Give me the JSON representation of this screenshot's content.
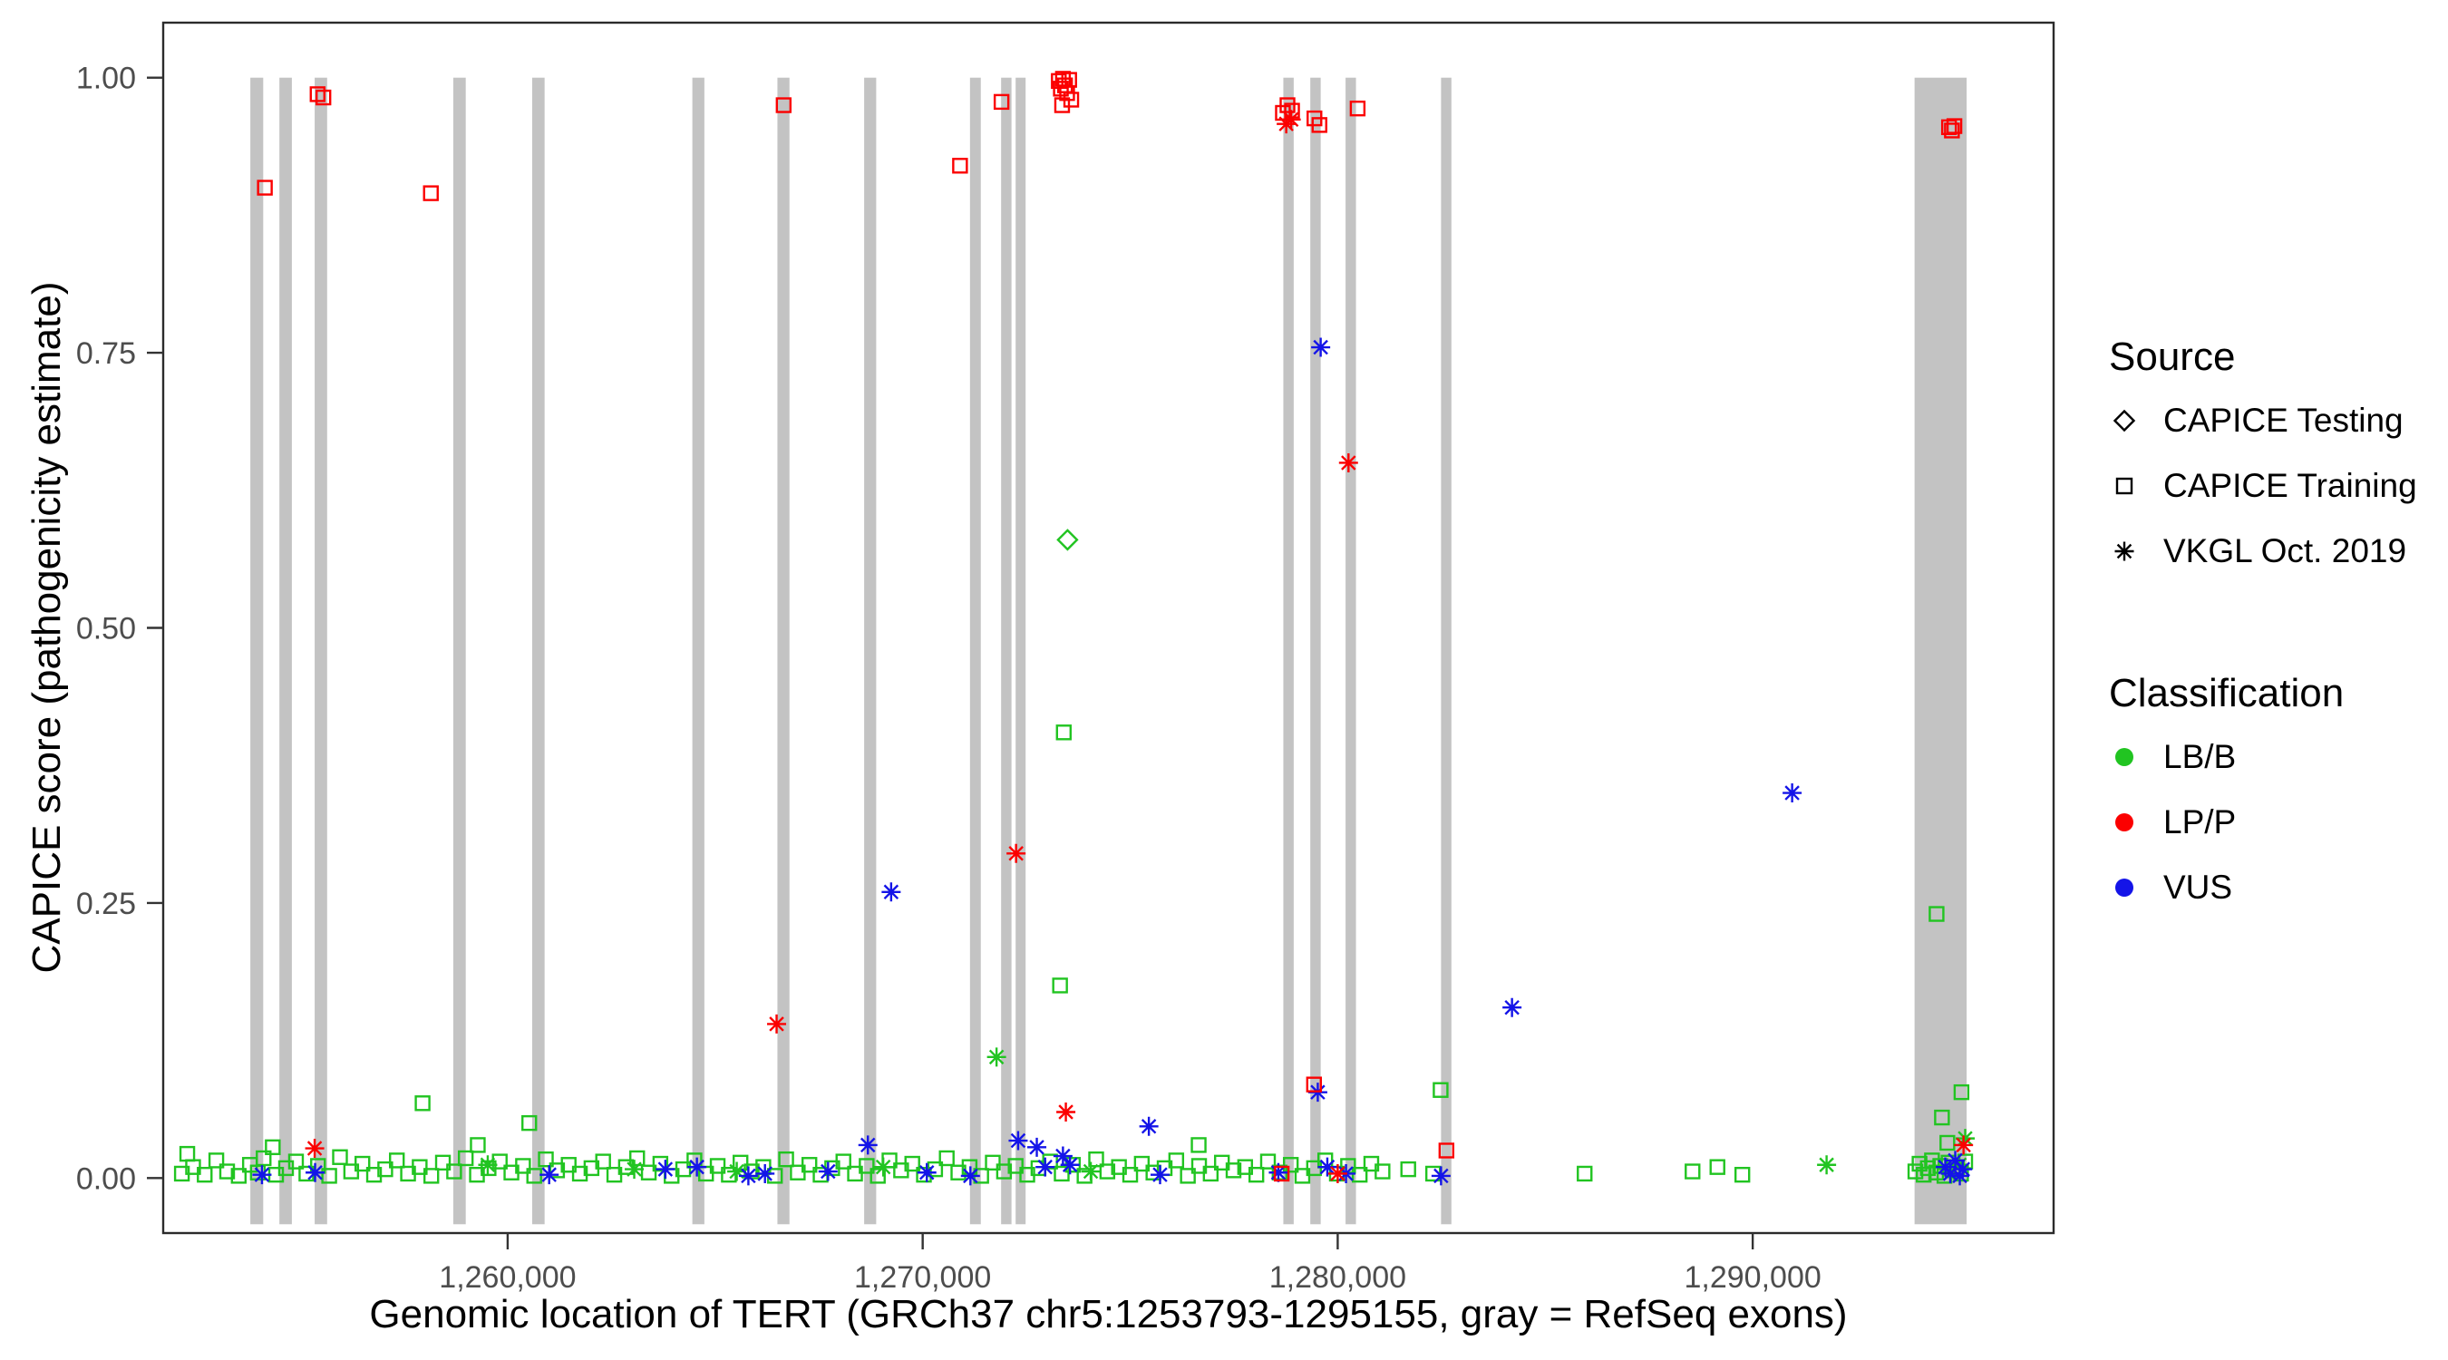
{
  "axes": {
    "x": {
      "title": "Genomic location of TERT (GRCh37 chr5:1253793-1295155, gray = RefSeq exons)",
      "ticks": [
        {
          "value": 1260000,
          "label": "1,260,000"
        },
        {
          "value": 1270000,
          "label": "1,270,000"
        },
        {
          "value": 1280000,
          "label": "1,280,000"
        },
        {
          "value": 1290000,
          "label": "1,290,000"
        }
      ]
    },
    "y": {
      "title": "CAPICE score (pathogenicity estimate)",
      "ticks": [
        {
          "value": 0.0,
          "label": "0.00"
        },
        {
          "value": 0.25,
          "label": "0.25"
        },
        {
          "value": 0.5,
          "label": "0.50"
        },
        {
          "value": 0.75,
          "label": "0.75"
        },
        {
          "value": 1.0,
          "label": "1.00"
        }
      ]
    }
  },
  "legend": {
    "source": {
      "title": "Source",
      "items": [
        {
          "label": "CAPICE Testing",
          "shape": "diamond"
        },
        {
          "label": "CAPICE Training",
          "shape": "square"
        },
        {
          "label": "VKGL Oct. 2019",
          "shape": "asterisk"
        }
      ]
    },
    "classification": {
      "title": "Classification",
      "items": [
        {
          "label": "LB/B",
          "color": "#21c421"
        },
        {
          "label": "LP/P",
          "color": "#fb0000"
        },
        {
          "label": "VUS",
          "color": "#1414e8"
        }
      ]
    }
  },
  "chart_data": {
    "type": "scatter",
    "title": "",
    "xlabel": "Genomic location of TERT (GRCh37 chr5:1253793-1295155, gray = RefSeq exons)",
    "ylabel": "CAPICE score (pathogenicity estimate)",
    "xlim": [
      1251700,
      1297250
    ],
    "ylim": [
      -0.05,
      1.05
    ],
    "grid": false,
    "legend_position": "right",
    "exon_color": "#c3c3c3",
    "exons": [
      [
        1253800,
        1254110
      ],
      [
        1254500,
        1254800
      ],
      [
        1255350,
        1255650
      ],
      [
        1258690,
        1258990
      ],
      [
        1260590,
        1260890
      ],
      [
        1264450,
        1264740
      ],
      [
        1266500,
        1266790
      ],
      [
        1268590,
        1268880
      ],
      [
        1271140,
        1271400
      ],
      [
        1271890,
        1272140
      ],
      [
        1272240,
        1272480
      ],
      [
        1278690,
        1278940
      ],
      [
        1279340,
        1279590
      ],
      [
        1280190,
        1280440
      ],
      [
        1282490,
        1282740
      ],
      [
        1293900,
        1295155
      ]
    ],
    "colors": {
      "B": "#21c421",
      "P": "#fb0000",
      "V": "#1414e8"
    },
    "classification_codes": {
      "B": "LB/B",
      "P": "LP/P",
      "V": "VUS"
    },
    "shape_codes": {
      "d": "CAPICE Testing",
      "s": "CAPICE Training",
      "a": "VKGL Oct. 2019"
    },
    "point_format": [
      "x_genomic_position",
      "capice_score",
      "classification_code",
      "shape_code"
    ],
    "points": [
      [
        1252150,
        0.004,
        "B",
        "s"
      ],
      [
        1252420,
        0.01,
        "B",
        "s"
      ],
      [
        1252700,
        0.003,
        "B",
        "s"
      ],
      [
        1252980,
        0.016,
        "B",
        "s"
      ],
      [
        1253240,
        0.006,
        "B",
        "s"
      ],
      [
        1253520,
        0.002,
        "B",
        "s"
      ],
      [
        1253790,
        0.012,
        "B",
        "s"
      ],
      [
        1253980,
        0.005,
        "B",
        "s"
      ],
      [
        1254120,
        0.018,
        "B",
        "s"
      ],
      [
        1254420,
        0.003,
        "B",
        "s"
      ],
      [
        1254660,
        0.009,
        "B",
        "s"
      ],
      [
        1254900,
        0.015,
        "B",
        "s"
      ],
      [
        1255150,
        0.004,
        "B",
        "s"
      ],
      [
        1255430,
        0.011,
        "B",
        "s"
      ],
      [
        1255700,
        0.002,
        "B",
        "s"
      ],
      [
        1255960,
        0.019,
        "B",
        "s"
      ],
      [
        1256230,
        0.006,
        "B",
        "s"
      ],
      [
        1256500,
        0.013,
        "B",
        "s"
      ],
      [
        1256780,
        0.003,
        "B",
        "s"
      ],
      [
        1257050,
        0.008,
        "B",
        "s"
      ],
      [
        1257330,
        0.016,
        "B",
        "s"
      ],
      [
        1257600,
        0.004,
        "B",
        "s"
      ],
      [
        1257880,
        0.01,
        "B",
        "s"
      ],
      [
        1258160,
        0.002,
        "B",
        "s"
      ],
      [
        1258440,
        0.014,
        "B",
        "s"
      ],
      [
        1258710,
        0.006,
        "B",
        "s"
      ],
      [
        1258990,
        0.018,
        "B",
        "s"
      ],
      [
        1259260,
        0.003,
        "B",
        "s"
      ],
      [
        1259540,
        0.009,
        "B",
        "s"
      ],
      [
        1259810,
        0.015,
        "B",
        "s"
      ],
      [
        1260090,
        0.005,
        "B",
        "s"
      ],
      [
        1260370,
        0.011,
        "B",
        "s"
      ],
      [
        1260640,
        0.002,
        "B",
        "s"
      ],
      [
        1260920,
        0.017,
        "B",
        "s"
      ],
      [
        1261190,
        0.007,
        "B",
        "s"
      ],
      [
        1261470,
        0.012,
        "B",
        "s"
      ],
      [
        1261740,
        0.004,
        "B",
        "s"
      ],
      [
        1262020,
        0.009,
        "B",
        "s"
      ],
      [
        1262300,
        0.015,
        "B",
        "s"
      ],
      [
        1262570,
        0.003,
        "B",
        "s"
      ],
      [
        1262850,
        0.01,
        "B",
        "s"
      ],
      [
        1263120,
        0.018,
        "B",
        "s"
      ],
      [
        1263400,
        0.005,
        "B",
        "s"
      ],
      [
        1263680,
        0.013,
        "B",
        "s"
      ],
      [
        1263950,
        0.002,
        "B",
        "s"
      ],
      [
        1264230,
        0.008,
        "B",
        "s"
      ],
      [
        1264500,
        0.016,
        "B",
        "s"
      ],
      [
        1264780,
        0.004,
        "B",
        "s"
      ],
      [
        1265060,
        0.011,
        "B",
        "s"
      ],
      [
        1265330,
        0.003,
        "B",
        "s"
      ],
      [
        1265610,
        0.014,
        "B",
        "s"
      ],
      [
        1265880,
        0.006,
        "B",
        "s"
      ],
      [
        1266160,
        0.01,
        "B",
        "s"
      ],
      [
        1266440,
        0.002,
        "B",
        "s"
      ],
      [
        1266710,
        0.017,
        "B",
        "s"
      ],
      [
        1266990,
        0.005,
        "B",
        "s"
      ],
      [
        1267270,
        0.012,
        "B",
        "s"
      ],
      [
        1267540,
        0.003,
        "B",
        "s"
      ],
      [
        1267820,
        0.009,
        "B",
        "s"
      ],
      [
        1268090,
        0.015,
        "B",
        "s"
      ],
      [
        1268370,
        0.004,
        "B",
        "s"
      ],
      [
        1268650,
        0.011,
        "B",
        "s"
      ],
      [
        1268920,
        0.002,
        "B",
        "s"
      ],
      [
        1269200,
        0.016,
        "B",
        "s"
      ],
      [
        1269480,
        0.007,
        "B",
        "s"
      ],
      [
        1269750,
        0.013,
        "B",
        "s"
      ],
      [
        1270030,
        0.003,
        "B",
        "s"
      ],
      [
        1270300,
        0.008,
        "B",
        "s"
      ],
      [
        1270580,
        0.018,
        "B",
        "s"
      ],
      [
        1270860,
        0.005,
        "B",
        "s"
      ],
      [
        1271130,
        0.01,
        "B",
        "s"
      ],
      [
        1271410,
        0.002,
        "B",
        "s"
      ],
      [
        1271690,
        0.014,
        "B",
        "s"
      ],
      [
        1271960,
        0.006,
        "B",
        "s"
      ],
      [
        1272240,
        0.011,
        "B",
        "s"
      ],
      [
        1272520,
        0.003,
        "B",
        "s"
      ],
      [
        1272790,
        0.009,
        "B",
        "s"
      ],
      [
        1273070,
        0.015,
        "B",
        "s"
      ],
      [
        1273350,
        0.004,
        "B",
        "s"
      ],
      [
        1273620,
        0.012,
        "B",
        "s"
      ],
      [
        1273900,
        0.002,
        "B",
        "s"
      ],
      [
        1274180,
        0.017,
        "B",
        "s"
      ],
      [
        1274450,
        0.006,
        "B",
        "s"
      ],
      [
        1274730,
        0.01,
        "B",
        "s"
      ],
      [
        1275000,
        0.003,
        "B",
        "s"
      ],
      [
        1275280,
        0.013,
        "B",
        "s"
      ],
      [
        1275560,
        0.005,
        "B",
        "s"
      ],
      [
        1275830,
        0.009,
        "B",
        "s"
      ],
      [
        1276110,
        0.016,
        "B",
        "s"
      ],
      [
        1276390,
        0.002,
        "B",
        "s"
      ],
      [
        1276660,
        0.011,
        "B",
        "s"
      ],
      [
        1276940,
        0.004,
        "B",
        "s"
      ],
      [
        1277210,
        0.014,
        "B",
        "s"
      ],
      [
        1277490,
        0.007,
        "B",
        "s"
      ],
      [
        1277770,
        0.01,
        "B",
        "s"
      ],
      [
        1278040,
        0.003,
        "B",
        "s"
      ],
      [
        1278320,
        0.015,
        "B",
        "s"
      ],
      [
        1278600,
        0.005,
        "B",
        "s"
      ],
      [
        1278870,
        0.012,
        "B",
        "s"
      ],
      [
        1279150,
        0.002,
        "B",
        "s"
      ],
      [
        1279430,
        0.009,
        "B",
        "s"
      ],
      [
        1279700,
        0.016,
        "B",
        "s"
      ],
      [
        1279980,
        0.004,
        "B",
        "s"
      ],
      [
        1280250,
        0.011,
        "B",
        "s"
      ],
      [
        1280530,
        0.003,
        "B",
        "s"
      ],
      [
        1280810,
        0.013,
        "B",
        "s"
      ],
      [
        1281080,
        0.006,
        "B",
        "s"
      ],
      [
        1281700,
        0.008,
        "B",
        "s"
      ],
      [
        1282300,
        0.004,
        "B",
        "s"
      ],
      [
        1285950,
        0.004,
        "B",
        "s"
      ],
      [
        1288550,
        0.006,
        "B",
        "s"
      ],
      [
        1289150,
        0.01,
        "B",
        "s"
      ],
      [
        1289750,
        0.003,
        "B",
        "s"
      ],
      [
        1293920,
        0.006,
        "B",
        "s"
      ],
      [
        1294020,
        0.013,
        "B",
        "s"
      ],
      [
        1294120,
        0.003,
        "B",
        "s"
      ],
      [
        1294220,
        0.009,
        "B",
        "s"
      ],
      [
        1294320,
        0.016,
        "B",
        "s"
      ],
      [
        1294420,
        0.005,
        "B",
        "s"
      ],
      [
        1294520,
        0.011,
        "B",
        "s"
      ],
      [
        1294620,
        0.002,
        "B",
        "s"
      ],
      [
        1294720,
        0.014,
        "B",
        "s"
      ],
      [
        1294820,
        0.007,
        "B",
        "s"
      ],
      [
        1294920,
        0.01,
        "B",
        "s"
      ],
      [
        1295020,
        0.004,
        "B",
        "s"
      ],
      [
        1295120,
        0.015,
        "B",
        "s"
      ],
      [
        1257950,
        0.068,
        "B",
        "s"
      ],
      [
        1260520,
        0.05,
        "B",
        "s"
      ],
      [
        1282480,
        0.08,
        "B",
        "s"
      ],
      [
        1295030,
        0.078,
        "B",
        "s"
      ],
      [
        1252280,
        0.022,
        "B",
        "s"
      ],
      [
        1254340,
        0.028,
        "B",
        "s"
      ],
      [
        1259280,
        0.03,
        "B",
        "s"
      ],
      [
        1276650,
        0.03,
        "B",
        "s"
      ],
      [
        1294560,
        0.055,
        "B",
        "s"
      ],
      [
        1294690,
        0.032,
        "B",
        "s"
      ],
      [
        1273400,
        0.405,
        "B",
        "s"
      ],
      [
        1273310,
        0.175,
        "B",
        "s"
      ],
      [
        1294430,
        0.24,
        "B",
        "s"
      ],
      [
        1271780,
        0.11,
        "B",
        "a"
      ],
      [
        1291780,
        0.012,
        "B",
        "a"
      ],
      [
        1295120,
        0.036,
        "B",
        "a"
      ],
      [
        1259520,
        0.012,
        "B",
        "a"
      ],
      [
        1263050,
        0.008,
        "B",
        "a"
      ],
      [
        1265520,
        0.006,
        "B",
        "a"
      ],
      [
        1269050,
        0.01,
        "B",
        "a"
      ],
      [
        1274050,
        0.006,
        "B",
        "a"
      ],
      [
        1294980,
        0.012,
        "B",
        "a"
      ],
      [
        1273490,
        0.58,
        "B",
        "d"
      ],
      [
        1254080,
        0.003,
        "V",
        "a"
      ],
      [
        1255360,
        0.005,
        "V",
        "a"
      ],
      [
        1261000,
        0.003,
        "V",
        "a"
      ],
      [
        1263800,
        0.008,
        "V",
        "a"
      ],
      [
        1264560,
        0.01,
        "V",
        "a"
      ],
      [
        1265800,
        0.002,
        "V",
        "a"
      ],
      [
        1266200,
        0.004,
        "V",
        "a"
      ],
      [
        1267720,
        0.006,
        "V",
        "a"
      ],
      [
        1268680,
        0.03,
        "V",
        "a"
      ],
      [
        1269240,
        0.26,
        "V",
        "a"
      ],
      [
        1270100,
        0.005,
        "V",
        "a"
      ],
      [
        1271150,
        0.002,
        "V",
        "a"
      ],
      [
        1272300,
        0.034,
        "V",
        "a"
      ],
      [
        1272750,
        0.028,
        "V",
        "a"
      ],
      [
        1272950,
        0.01,
        "V",
        "a"
      ],
      [
        1273380,
        0.02,
        "V",
        "a"
      ],
      [
        1273550,
        0.012,
        "V",
        "a"
      ],
      [
        1275450,
        0.047,
        "V",
        "a"
      ],
      [
        1275720,
        0.003,
        "V",
        "a"
      ],
      [
        1278570,
        0.005,
        "V",
        "a"
      ],
      [
        1279520,
        0.078,
        "V",
        "a"
      ],
      [
        1279590,
        0.755,
        "V",
        "a"
      ],
      [
        1279750,
        0.01,
        "V",
        "a"
      ],
      [
        1280200,
        0.004,
        "V",
        "a"
      ],
      [
        1282490,
        0.002,
        "V",
        "a"
      ],
      [
        1284200,
        0.155,
        "V",
        "a"
      ],
      [
        1290950,
        0.35,
        "V",
        "a"
      ],
      [
        1294640,
        0.01,
        "V",
        "a"
      ],
      [
        1294760,
        0.004,
        "V",
        "a"
      ],
      [
        1294880,
        0.016,
        "V",
        "a"
      ],
      [
        1294990,
        0.002,
        "V",
        "a"
      ],
      [
        1295060,
        0.008,
        "V",
        "a"
      ],
      [
        1254150,
        0.9,
        "P",
        "s"
      ],
      [
        1255420,
        0.985,
        "P",
        "s"
      ],
      [
        1255560,
        0.982,
        "P",
        "s"
      ],
      [
        1258150,
        0.895,
        "P",
        "s"
      ],
      [
        1266650,
        0.975,
        "P",
        "s"
      ],
      [
        1270900,
        0.92,
        "P",
        "s"
      ],
      [
        1271900,
        0.978,
        "P",
        "s"
      ],
      [
        1273280,
        0.997,
        "P",
        "s"
      ],
      [
        1273330,
        0.99,
        "P",
        "s"
      ],
      [
        1273380,
        0.999,
        "P",
        "s"
      ],
      [
        1273430,
        0.993,
        "P",
        "s"
      ],
      [
        1273480,
        0.986,
        "P",
        "s"
      ],
      [
        1273530,
        0.998,
        "P",
        "s"
      ],
      [
        1273580,
        0.98,
        "P",
        "s"
      ],
      [
        1273360,
        0.975,
        "P",
        "s"
      ],
      [
        1278680,
        0.968,
        "P",
        "s"
      ],
      [
        1278790,
        0.975,
        "P",
        "s"
      ],
      [
        1278900,
        0.97,
        "P",
        "s"
      ],
      [
        1279440,
        0.963,
        "P",
        "s"
      ],
      [
        1279560,
        0.957,
        "P",
        "s"
      ],
      [
        1280480,
        0.972,
        "P",
        "s"
      ],
      [
        1279430,
        0.085,
        "P",
        "s"
      ],
      [
        1282620,
        0.025,
        "P",
        "s"
      ],
      [
        1294730,
        0.955,
        "P",
        "s"
      ],
      [
        1294800,
        0.952,
        "P",
        "s"
      ],
      [
        1294860,
        0.956,
        "P",
        "s"
      ],
      [
        1278650,
        0.004,
        "P",
        "s"
      ],
      [
        1255350,
        0.027,
        "P",
        "a"
      ],
      [
        1266480,
        0.14,
        "P",
        "a"
      ],
      [
        1272250,
        0.295,
        "P",
        "a"
      ],
      [
        1273450,
        0.06,
        "P",
        "a"
      ],
      [
        1278760,
        0.958,
        "P",
        "a"
      ],
      [
        1278880,
        0.962,
        "P",
        "a"
      ],
      [
        1280260,
        0.65,
        "P",
        "a"
      ],
      [
        1295080,
        0.03,
        "P",
        "a"
      ],
      [
        1280000,
        0.004,
        "P",
        "a"
      ]
    ]
  }
}
